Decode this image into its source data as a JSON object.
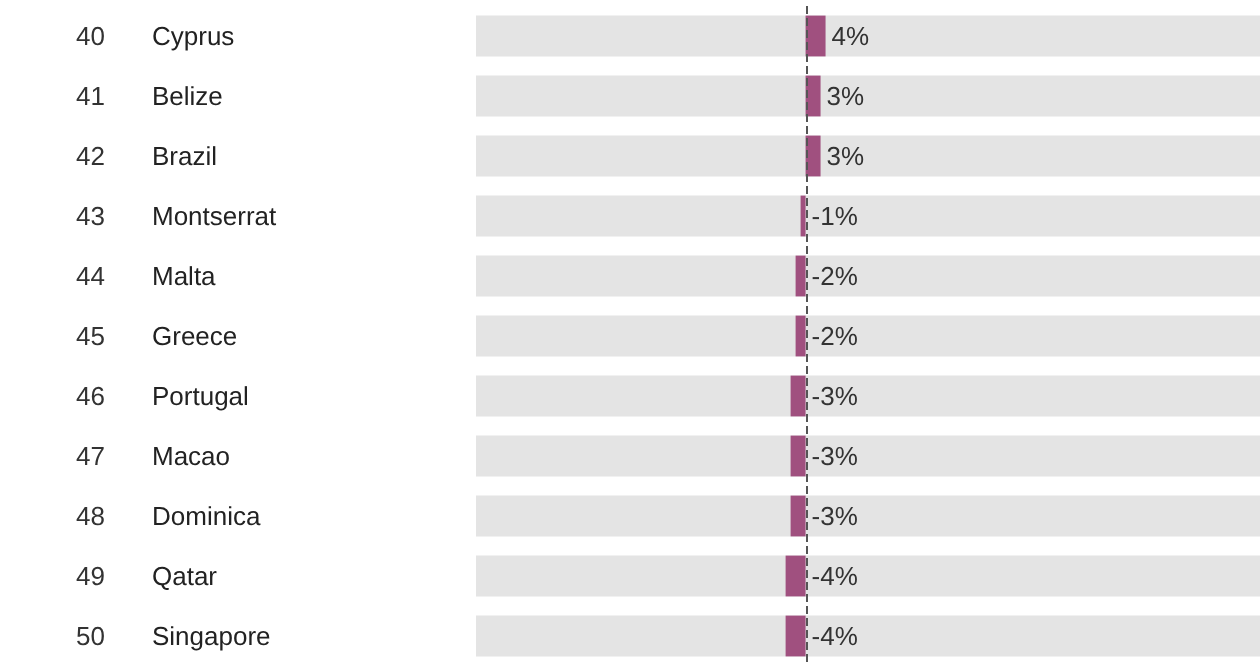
{
  "chart_data": {
    "type": "bar",
    "orientation": "horizontal",
    "categories": [
      "Cyprus",
      "Belize",
      "Brazil",
      "Montserrat",
      "Malta",
      "Greece",
      "Portugal",
      "Macao",
      "Dominica",
      "Qatar",
      "Singapore"
    ],
    "annotations": [
      "40",
      "41",
      "42",
      "43",
      "44",
      "45",
      "46",
      "47",
      "48",
      "49",
      "50"
    ],
    "values": [
      4,
      3,
      3,
      -1,
      -2,
      -2,
      -3,
      -3,
      -3,
      -4,
      -4
    ],
    "value_labels": [
      "4%",
      "3%",
      "3%",
      "-1%",
      "-2%",
      "-2%",
      "-3%",
      "-3%",
      "-3%",
      "-4%",
      "-4%"
    ],
    "color": "#a0507f",
    "xlim": [
      -66,
      91
    ],
    "ref_lines": [
      {
        "axis": "x",
        "value": 0,
        "line_style": "dashed",
        "color": "#555555"
      }
    ]
  }
}
